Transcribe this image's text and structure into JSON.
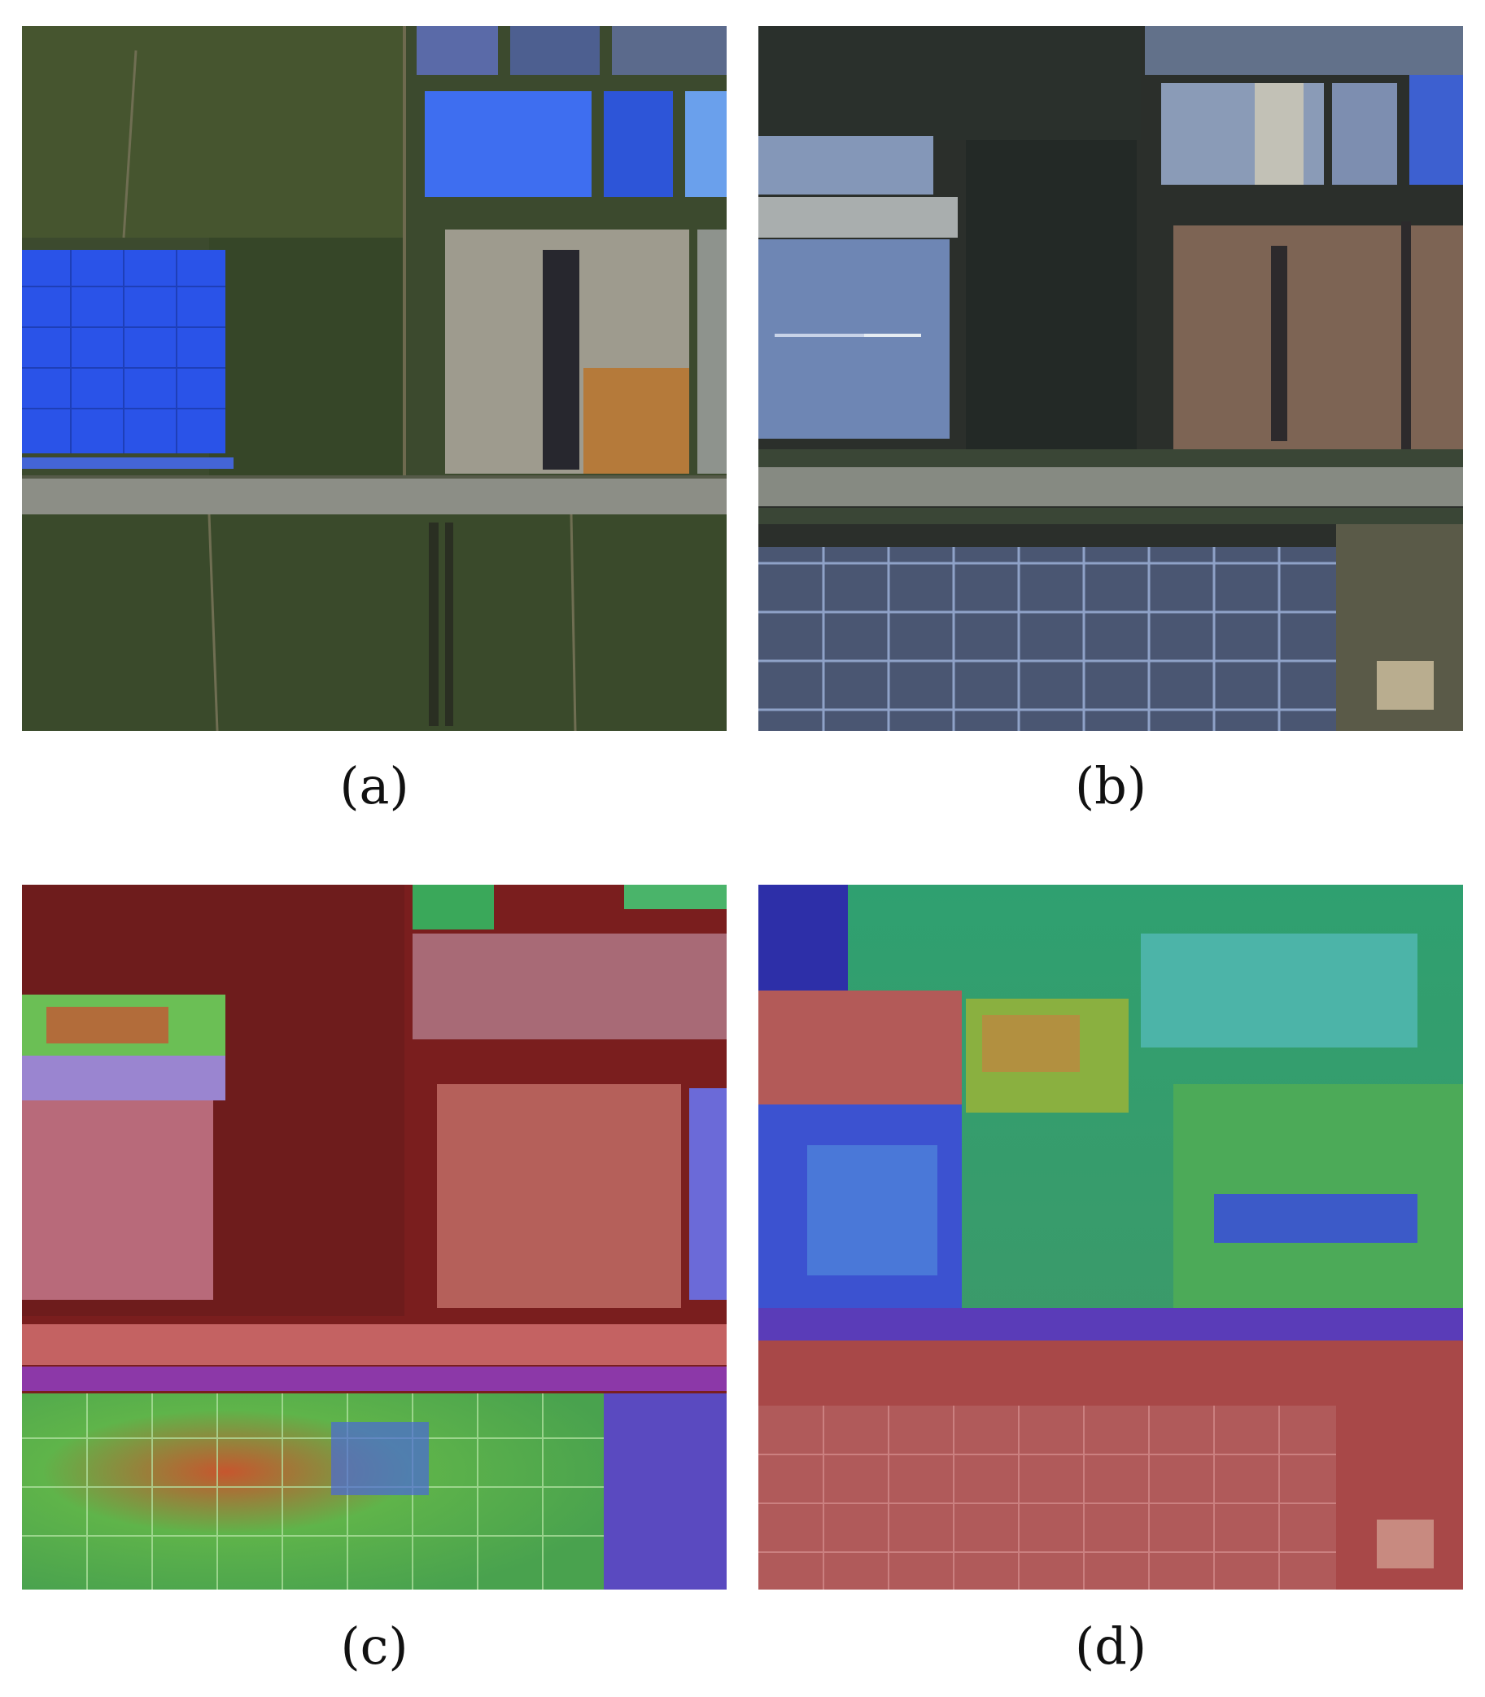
{
  "panels": [
    {
      "id": "a",
      "caption": "(a)"
    },
    {
      "id": "b",
      "caption": "(b)"
    },
    {
      "id": "c",
      "caption": "(c)"
    },
    {
      "id": "d",
      "caption": "(d)"
    }
  ],
  "colors": {
    "farmland": "#3a4a2c",
    "blue_roof": "#2f55e6",
    "road": "#8b8e86",
    "heatmap_low": "#b43434",
    "heatmap_mid": "#4c9f50",
    "heatmap_high": "#2a35c8"
  }
}
